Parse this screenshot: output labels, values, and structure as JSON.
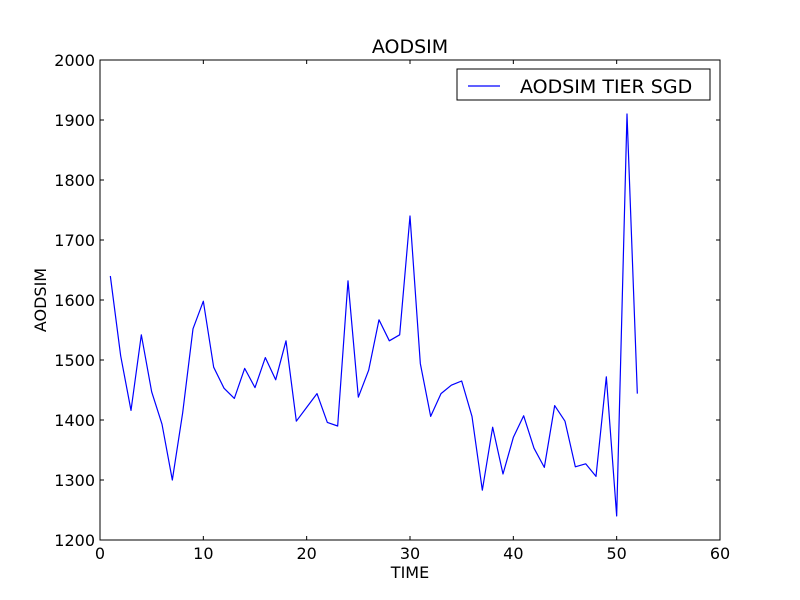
{
  "chart_data": {
    "type": "line",
    "title": "AODSIM",
    "xlabel": "TIME",
    "ylabel": "AODSIM",
    "xlim": [
      0,
      60
    ],
    "ylim": [
      1200,
      2000
    ],
    "xticks": [
      0,
      10,
      20,
      30,
      40,
      50,
      60
    ],
    "yticks": [
      1200,
      1300,
      1400,
      1500,
      1600,
      1700,
      1800,
      1900,
      2000
    ],
    "grid": false,
    "legend_position": "upper right",
    "series": [
      {
        "name": "AODSIM TIER SGD",
        "color": "#0000ff",
        "x": [
          1,
          2,
          3,
          4,
          5,
          6,
          7,
          8,
          9,
          10,
          11,
          12,
          13,
          14,
          15,
          16,
          17,
          18,
          19,
          20,
          21,
          22,
          23,
          24,
          25,
          26,
          27,
          28,
          29,
          30,
          31,
          32,
          33,
          34,
          35,
          36,
          37,
          38,
          39,
          40,
          41,
          42,
          43,
          44,
          45,
          46,
          47,
          48,
          49,
          50,
          51,
          52
        ],
        "y": [
          1640,
          1507,
          1416,
          1542,
          1447,
          1393,
          1300,
          1412,
          1552,
          1598,
          1488,
          1453,
          1436,
          1486,
          1454,
          1504,
          1467,
          1532,
          1398,
          1421,
          1444,
          1396,
          1390,
          1632,
          1438,
          1483,
          1567,
          1532,
          1542,
          1740,
          1494,
          1406,
          1444,
          1458,
          1465,
          1406,
          1283,
          1388,
          1310,
          1371,
          1407,
          1353,
          1321,
          1424,
          1398,
          1322,
          1327,
          1306,
          1472,
          1240,
          1910,
          1444
        ]
      }
    ]
  }
}
